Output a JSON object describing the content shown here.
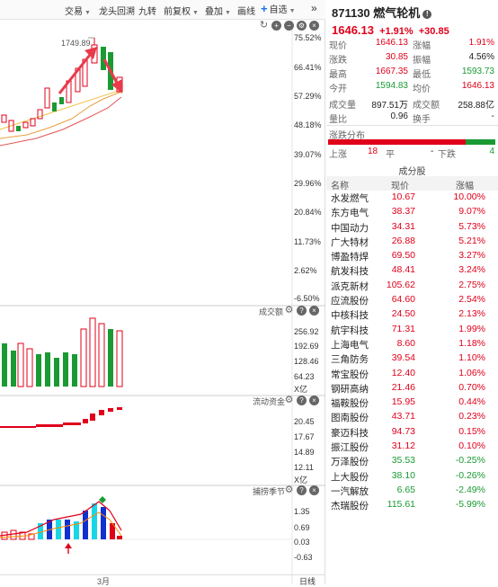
{
  "toolbar": {
    "items": [
      "交易",
      "龙头回溯",
      "九转",
      "前复权",
      "叠加",
      "画线",
      "自选"
    ],
    "more": "»"
  },
  "main_chart": {
    "high_marker": "1749.89",
    "y_axis": [
      "75.52%",
      "66.41%",
      "57.29%",
      "48.18%",
      "39.07%",
      "29.96%",
      "20.84%",
      "11.73%",
      "2.62%",
      "-6.50%"
    ]
  },
  "volume_panel": {
    "label": "成交额",
    "y_axis": [
      "256.92",
      "192.69",
      "128.46",
      "64.23"
    ],
    "unit": "X亿"
  },
  "flow_panel": {
    "label": "流动资金",
    "y_axis": [
      "20.45",
      "17.67",
      "14.89",
      "12.11"
    ],
    "unit": "X亿"
  },
  "capture_panel": {
    "label": "捕捞季节",
    "y_axis": [
      "1.35",
      "0.69",
      "0.03",
      "-0.63"
    ]
  },
  "x_axis": {
    "month": "3月",
    "period": "日线"
  },
  "quote": {
    "code": "871130",
    "name": "燃气轮机",
    "price": "1646.13",
    "change_pct": "+1.91%",
    "change": "+30.85",
    "stats": [
      {
        "l1": "现价",
        "v1": "1646.13",
        "c1": "red",
        "l2": "涨幅",
        "v2": "1.91%",
        "c2": "red"
      },
      {
        "l1": "涨跌",
        "v1": "30.85",
        "c1": "red",
        "l2": "振幅",
        "v2": "4.56%",
        "c2": ""
      },
      {
        "l1": "最高",
        "v1": "1667.35",
        "c1": "red",
        "l2": "最低",
        "v2": "1593.73",
        "c2": "green"
      },
      {
        "l1": "今开",
        "v1": "1594.83",
        "c1": "green",
        "l2": "均价",
        "v2": "1646.13",
        "c2": "red"
      },
      {
        "l1": "成交量",
        "v1": "897.51万",
        "c1": "",
        "l2": "成交额",
        "v2": "258.88亿",
        "c2": ""
      },
      {
        "l1": "量比",
        "v1": "0.96",
        "c1": "",
        "l2": "换手",
        "v2": "-",
        "c2": ""
      }
    ]
  },
  "distribution": {
    "title": "涨跌分布",
    "up_label": "上涨",
    "up_count": "18",
    "flat_label": "平",
    "flat_count": "-",
    "down_label": "下跌",
    "down_count": "4"
  },
  "components": {
    "title": "成分股",
    "headers": {
      "name": "名称",
      "price": "现价",
      "pct": "涨幅"
    },
    "rows": [
      {
        "name": "水发燃气",
        "price": "10.67",
        "pct": "10.00%",
        "dir": "red"
      },
      {
        "name": "东方电气",
        "price": "38.37",
        "pct": "9.07%",
        "dir": "red"
      },
      {
        "name": "中国动力",
        "price": "34.31",
        "pct": "5.73%",
        "dir": "red"
      },
      {
        "name": "广大特材",
        "price": "26.88",
        "pct": "5.21%",
        "dir": "red"
      },
      {
        "name": "博盈特焊",
        "price": "69.50",
        "pct": "3.27%",
        "dir": "red"
      },
      {
        "name": "航发科技",
        "price": "48.41",
        "pct": "3.24%",
        "dir": "red"
      },
      {
        "name": "派克新材",
        "price": "105.62",
        "pct": "2.75%",
        "dir": "red"
      },
      {
        "name": "应流股份",
        "price": "64.60",
        "pct": "2.54%",
        "dir": "red"
      },
      {
        "name": "中核科技",
        "price": "24.50",
        "pct": "2.13%",
        "dir": "red"
      },
      {
        "name": "航宇科技",
        "price": "71.31",
        "pct": "1.99%",
        "dir": "red"
      },
      {
        "name": "上海电气",
        "price": "8.60",
        "pct": "1.18%",
        "dir": "red"
      },
      {
        "name": "三角防务",
        "price": "39.54",
        "pct": "1.10%",
        "dir": "red"
      },
      {
        "name": "常宝股份",
        "price": "12.40",
        "pct": "1.06%",
        "dir": "red"
      },
      {
        "name": "钢研高纳",
        "price": "21.46",
        "pct": "0.70%",
        "dir": "red"
      },
      {
        "name": "福鞍股份",
        "price": "15.95",
        "pct": "0.44%",
        "dir": "red"
      },
      {
        "name": "图南股份",
        "price": "43.71",
        "pct": "0.23%",
        "dir": "red"
      },
      {
        "name": "豪迈科技",
        "price": "94.73",
        "pct": "0.15%",
        "dir": "red"
      },
      {
        "name": "振江股份",
        "price": "31.12",
        "pct": "0.10%",
        "dir": "red"
      },
      {
        "name": "万泽股份",
        "price": "35.53",
        "pct": "-0.25%",
        "dir": "green"
      },
      {
        "name": "上大股份",
        "price": "38.10",
        "pct": "-0.26%",
        "dir": "green"
      },
      {
        "name": "一汽解放",
        "price": "6.65",
        "pct": "-2.49%",
        "dir": "green"
      },
      {
        "name": "杰瑞股份",
        "price": "115.61",
        "pct": "-5.99%",
        "dir": "green"
      }
    ]
  },
  "colors": {
    "up": "#e0001a",
    "down": "#1a9a33",
    "cyan": "#19d6e6",
    "blue": "#1030d0"
  }
}
